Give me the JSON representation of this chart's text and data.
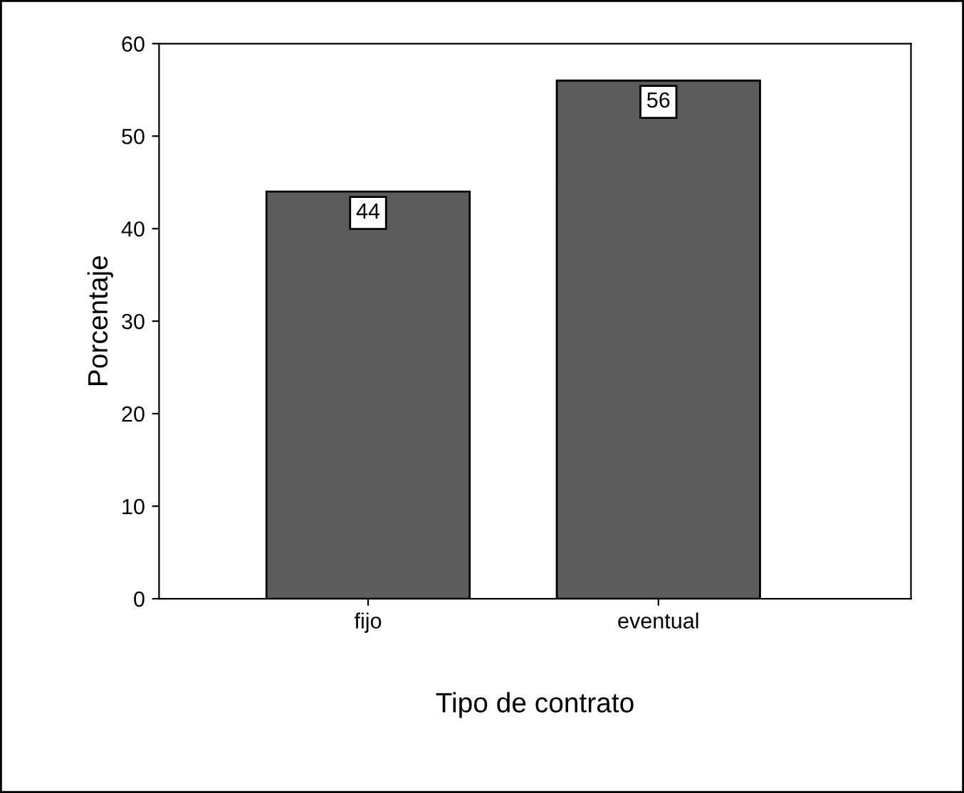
{
  "chart_data": {
    "type": "bar",
    "xlabel": "Tipo de contrato",
    "ylabel": "Porcentaje",
    "categories": [
      "fijo",
      "eventual"
    ],
    "values": [
      44,
      56
    ],
    "color": "#5c5c5c",
    "ylim": [
      0,
      60
    ],
    "yticks": [
      0,
      10,
      20,
      30,
      40,
      50,
      60
    ],
    "grid": false,
    "data_labels": true
  }
}
